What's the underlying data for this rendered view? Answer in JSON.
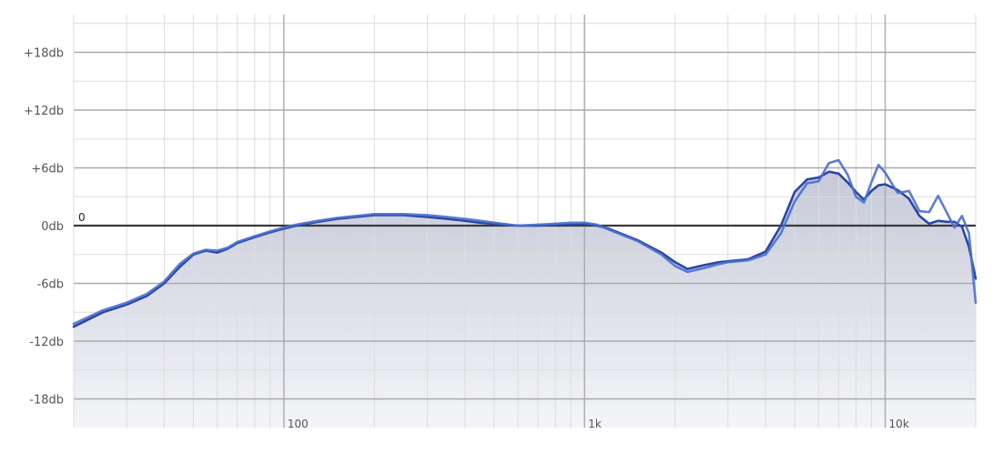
{
  "chart_data": {
    "type": "line",
    "x_scale": "log",
    "xlim": [
      20,
      20000
    ],
    "ylim": [
      -24,
      24
    ],
    "grid": true,
    "y_ticks": [
      {
        "value": 18,
        "label": "+18db"
      },
      {
        "value": 12,
        "label": "+12db"
      },
      {
        "value": 6,
        "label": "+6db"
      },
      {
        "value": 0,
        "label": "0db"
      },
      {
        "value": -6,
        "label": "-6db"
      },
      {
        "value": -12,
        "label": "-12db"
      },
      {
        "value": -18,
        "label": "-18db"
      }
    ],
    "x_ticks": [
      {
        "value": 100,
        "label": "100"
      },
      {
        "value": 1000,
        "label": "1k"
      },
      {
        "value": 10000,
        "label": "10k"
      }
    ],
    "reference_line": {
      "value": 0,
      "label": "0"
    },
    "colors": {
      "series_dark": "#2a46a3",
      "series_light": "#4a6fd0",
      "fill_top": "#c6cad8",
      "fill_bottom": "#f4f5f8",
      "grid_major": "#aaaaaa",
      "grid_minor": "#dddddd",
      "zero_line": "#3a3a3a"
    },
    "series": [
      {
        "x": [
          20,
          25,
          30,
          35,
          40,
          45,
          50,
          55,
          60,
          65,
          70,
          80,
          90,
          100,
          110,
          130,
          150,
          200,
          250,
          300,
          350,
          400,
          450,
          500,
          600,
          700,
          800,
          900,
          1000,
          1100,
          1200,
          1500,
          1800,
          2000,
          2200,
          2500,
          2800,
          3000,
          3500,
          4000,
          4500,
          5000,
          5500,
          6000,
          6500,
          7000,
          7500,
          8000,
          8500,
          9000,
          9500,
          10000,
          11000,
          12000,
          13000,
          14000,
          15000,
          16000,
          17000,
          18000,
          19000,
          20000
        ],
        "y": [
          -10.5,
          -9.0,
          -8.2,
          -7.3,
          -6.0,
          -4.3,
          -3.0,
          -2.6,
          -2.8,
          -2.4,
          -1.8,
          -1.2,
          -0.7,
          -0.3,
          0.0,
          0.4,
          0.7,
          1.1,
          1.1,
          0.9,
          0.7,
          0.5,
          0.3,
          0.2,
          0.0,
          0.0,
          0.1,
          0.1,
          0.2,
          0.0,
          -0.3,
          -1.5,
          -2.8,
          -3.8,
          -4.5,
          -4.1,
          -3.8,
          -3.7,
          -3.5,
          -2.7,
          0.0,
          3.5,
          4.8,
          5.0,
          5.6,
          5.4,
          4.5,
          3.5,
          2.7,
          3.6,
          4.2,
          4.3,
          3.7,
          2.8,
          1.0,
          0.2,
          0.5,
          0.4,
          0.4,
          -0.1,
          -2.2,
          -5.5
        ]
      },
      {
        "x": [
          20,
          25,
          30,
          35,
          40,
          45,
          50,
          55,
          60,
          65,
          70,
          80,
          90,
          100,
          110,
          130,
          150,
          200,
          250,
          300,
          350,
          400,
          450,
          500,
          600,
          700,
          800,
          900,
          1000,
          1100,
          1200,
          1500,
          1800,
          2000,
          2200,
          2500,
          2800,
          3000,
          3500,
          4000,
          4500,
          5000,
          5500,
          6000,
          6500,
          7000,
          7500,
          8000,
          8500,
          9000,
          9500,
          10000,
          11000,
          12000,
          13000,
          14000,
          15000,
          16000,
          17000,
          18000,
          19000,
          20000
        ],
        "y": [
          -10.2,
          -8.8,
          -8.0,
          -7.1,
          -5.8,
          -4.0,
          -2.9,
          -2.5,
          -2.6,
          -2.3,
          -1.7,
          -1.1,
          -0.6,
          -0.2,
          0.1,
          0.5,
          0.8,
          1.2,
          1.2,
          1.1,
          0.9,
          0.7,
          0.5,
          0.3,
          0.0,
          0.1,
          0.2,
          0.3,
          0.3,
          0.1,
          -0.4,
          -1.6,
          -3.0,
          -4.2,
          -4.8,
          -4.4,
          -4.0,
          -3.8,
          -3.6,
          -3.0,
          -0.8,
          2.5,
          4.4,
          4.6,
          6.5,
          6.8,
          5.3,
          3.0,
          2.4,
          4.5,
          6.3,
          5.5,
          3.4,
          3.6,
          1.5,
          1.4,
          3.1,
          1.4,
          -0.2,
          1.0,
          -0.8,
          -8.0
        ]
      }
    ]
  }
}
